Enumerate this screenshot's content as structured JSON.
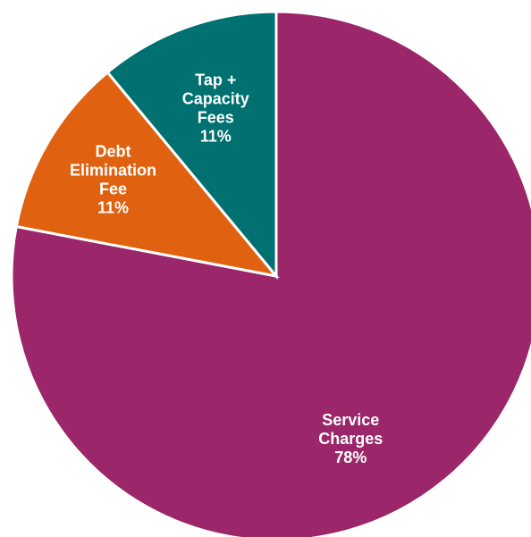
{
  "chart_data": {
    "type": "pie",
    "title": "",
    "start_angle_deg": 0,
    "direction": "clockwise",
    "slices": [
      {
        "key": "service",
        "label_lines": [
          "Service",
          "Charges"
        ],
        "value": 78,
        "value_label": "78%",
        "color": "#9B2669"
      },
      {
        "key": "debt",
        "label_lines": [
          "Debt",
          "Elimination",
          "Fee"
        ],
        "value": 11,
        "value_label": "11%",
        "color": "#E06210"
      },
      {
        "key": "tap",
        "label_lines": [
          "Tap +",
          "Capacity",
          "Fees"
        ],
        "value": 11,
        "value_label": "11%",
        "color": "#007070"
      }
    ]
  }
}
